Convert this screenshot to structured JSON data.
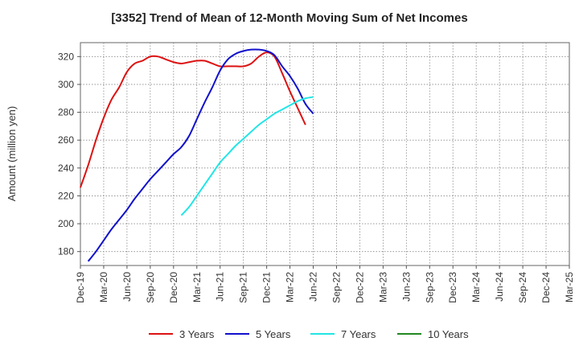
{
  "chart_data": {
    "type": "line",
    "title": "[3352]  Trend of Mean of 12-Month Moving Sum of Net Incomes",
    "xlabel": "",
    "ylabel": "Amount (million yen)",
    "ylim": [
      170,
      330
    ],
    "yticks": [
      180,
      200,
      220,
      240,
      260,
      280,
      300,
      320
    ],
    "x_tick_labels": [
      "Dec-19",
      "Mar-20",
      "Jun-20",
      "Sep-20",
      "Dec-20",
      "Mar-21",
      "Jun-21",
      "Sep-21",
      "Dec-21",
      "Mar-22",
      "Jun-22",
      "Sep-22",
      "Dec-22",
      "Mar-23",
      "Jun-23",
      "Sep-23",
      "Dec-23",
      "Mar-24",
      "Jun-24",
      "Sep-24",
      "Dec-24",
      "Mar-25"
    ],
    "grid": true,
    "legend_position": "bottom",
    "series": [
      {
        "name": "3 Years",
        "color": "#dd1111",
        "points": [
          [
            0,
            226
          ],
          [
            1,
            242
          ],
          [
            2,
            260
          ],
          [
            3,
            276
          ],
          [
            4,
            289
          ],
          [
            5,
            298
          ],
          [
            6,
            309
          ],
          [
            7,
            315
          ],
          [
            8,
            317
          ],
          [
            9,
            320
          ],
          [
            10,
            320
          ],
          [
            11,
            318
          ],
          [
            12,
            316
          ],
          [
            13,
            315
          ],
          [
            14,
            316
          ],
          [
            15,
            317
          ],
          [
            16,
            317
          ],
          [
            17,
            315
          ],
          [
            18,
            313
          ],
          [
            19,
            313
          ],
          [
            20,
            313
          ],
          [
            21,
            313
          ],
          [
            22,
            315
          ],
          [
            23,
            320
          ],
          [
            24,
            323
          ],
          [
            25,
            320
          ],
          [
            26,
            308
          ],
          [
            27,
            295
          ],
          [
            28,
            283
          ],
          [
            29,
            271
          ]
        ]
      },
      {
        "name": "5 Years",
        "color": "#1111cc",
        "points": [
          [
            1,
            173
          ],
          [
            2,
            180
          ],
          [
            3,
            188
          ],
          [
            4,
            196
          ],
          [
            5,
            203
          ],
          [
            6,
            210
          ],
          [
            7,
            218
          ],
          [
            8,
            225
          ],
          [
            9,
            232
          ],
          [
            10,
            238
          ],
          [
            11,
            244
          ],
          [
            12,
            250
          ],
          [
            13,
            255
          ],
          [
            14,
            263
          ],
          [
            15,
            275
          ],
          [
            16,
            287
          ],
          [
            17,
            298
          ],
          [
            18,
            310
          ],
          [
            19,
            318
          ],
          [
            20,
            322
          ],
          [
            21,
            324
          ],
          [
            22,
            325
          ],
          [
            23,
            325
          ],
          [
            24,
            324
          ],
          [
            25,
            321
          ],
          [
            26,
            313
          ],
          [
            27,
            306
          ],
          [
            28,
            297
          ],
          [
            29,
            286
          ],
          [
            30,
            279
          ]
        ]
      },
      {
        "name": "7 Years",
        "color": "#22e5e5",
        "points": [
          [
            13,
            206
          ],
          [
            14,
            212
          ],
          [
            15,
            220
          ],
          [
            16,
            228
          ],
          [
            17,
            236
          ],
          [
            18,
            244
          ],
          [
            19,
            250
          ],
          [
            20,
            256
          ],
          [
            21,
            261
          ],
          [
            22,
            266
          ],
          [
            23,
            271
          ],
          [
            24,
            275
          ],
          [
            25,
            279
          ],
          [
            26,
            282
          ],
          [
            27,
            285
          ],
          [
            28,
            288
          ],
          [
            29,
            290
          ],
          [
            30,
            291
          ]
        ]
      },
      {
        "name": "10 Years",
        "color": "#228822",
        "points": []
      }
    ]
  }
}
